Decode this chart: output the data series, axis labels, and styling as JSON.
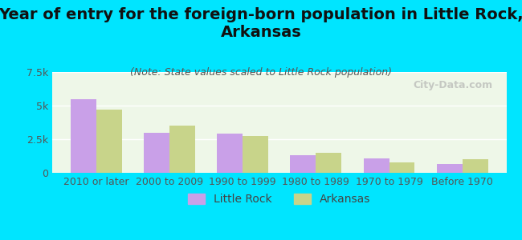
{
  "title": "Year of entry for the foreign-born population in Little Rock,\nArkansas",
  "subtitle": "(Note: State values scaled to Little Rock population)",
  "categories": [
    "2010 or later",
    "2000 to 2009",
    "1990 to 1999",
    "1980 to 1989",
    "1970 to 1979",
    "Before 1970"
  ],
  "little_rock": [
    5500,
    3000,
    2900,
    1300,
    1050,
    650
  ],
  "arkansas": [
    4700,
    3500,
    2750,
    1500,
    800,
    1000
  ],
  "little_rock_color": "#c9a0e8",
  "arkansas_color": "#c8d48a",
  "background_color": "#00e5ff",
  "plot_bg_top": "#e8f5e0",
  "plot_bg_bottom": "#f0fff0",
  "ylim": [
    0,
    7500
  ],
  "yticks": [
    0,
    2500,
    5000,
    7500
  ],
  "ytick_labels": [
    "0",
    "2.5k",
    "5k",
    "7.5k"
  ],
  "bar_width": 0.35,
  "legend_labels": [
    "Little Rock",
    "Arkansas"
  ],
  "watermark": "City-Data.com",
  "title_fontsize": 14,
  "subtitle_fontsize": 9,
  "tick_fontsize": 9,
  "legend_fontsize": 10
}
